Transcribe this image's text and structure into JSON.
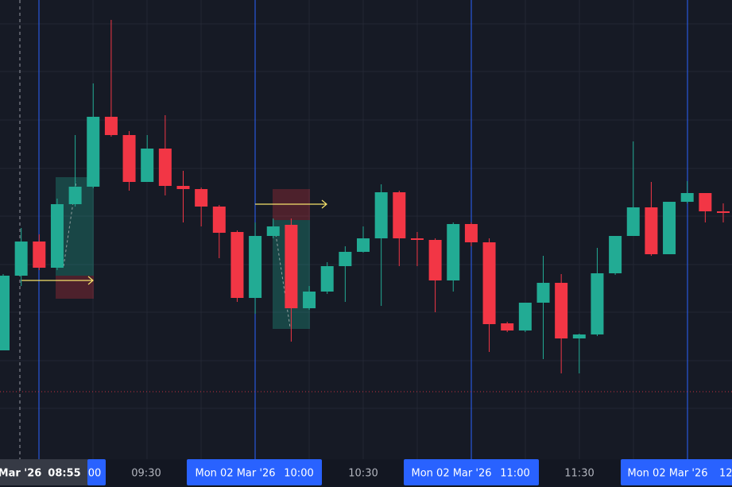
{
  "chart_data": {
    "type": "candlestick",
    "ylim": [
      0,
      575
    ],
    "up_color": "#22ab94",
    "down_color": "#f23645",
    "open": [
      134,
      228,
      271,
      238,
      318,
      340,
      428,
      405,
      346,
      388,
      341,
      337,
      315,
      283,
      200,
      278,
      292,
      187,
      208,
      240,
      258,
      275,
      333,
      275,
      273,
      222,
      293,
      270,
      168,
      159,
      194,
      219,
      149,
      154,
      231,
      278,
      314,
      255,
      321,
      332,
      309
    ],
    "close": [
      228,
      271,
      238,
      318,
      340,
      428,
      405,
      346,
      388,
      341,
      337,
      315,
      282,
      200,
      278,
      290,
      187,
      208,
      240,
      258,
      275,
      333,
      275,
      273,
      222,
      293,
      270,
      167,
      159,
      194,
      219,
      149,
      154,
      231,
      278,
      314,
      255,
      321,
      332,
      309,
      307
    ],
    "high": [
      230,
      288,
      280,
      325,
      405,
      470,
      550,
      410,
      405,
      430,
      360,
      339,
      317,
      285,
      295,
      300,
      300,
      215,
      245,
      265,
      290,
      343,
      335,
      283,
      275,
      295,
      295,
      275,
      170,
      194,
      253,
      230,
      155,
      263,
      278,
      397,
      346,
      321,
      347,
      332,
      319
    ],
    "low": [
      134,
      215,
      235,
      235,
      315,
      338,
      403,
      335,
      346,
      329,
      295,
      290,
      250,
      195,
      180,
      275,
      145,
      185,
      205,
      195,
      257,
      190,
      240,
      240,
      182,
      208,
      265,
      132,
      157,
      157,
      123,
      105,
      105,
      152,
      229,
      278,
      253,
      255,
      319,
      295,
      295
    ],
    "x_labels": [
      "Mar '26",
      "08:55",
      "00",
      "09:30",
      "Mon 02 Mar '26",
      "10:00",
      "10:30",
      "Mon 02 Mar '26",
      "11:00",
      "11:30",
      "Mon 02 Mar '26",
      "12"
    ]
  }
}
